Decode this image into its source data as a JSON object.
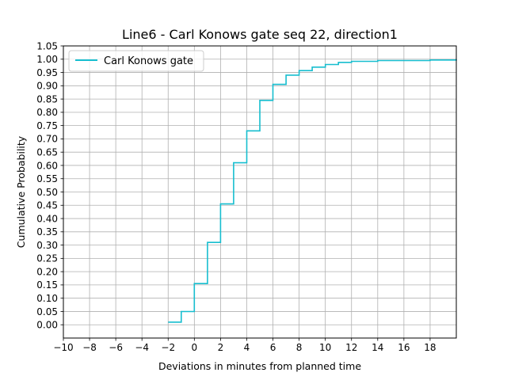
{
  "chart_data": {
    "type": "line",
    "step": "post",
    "title": "Line6 - Carl Konows gate seq 22, direction1",
    "xlabel": "Deviations in minutes from planned time",
    "ylabel": "Cumulative Probability",
    "xlim": [
      -10,
      20
    ],
    "ylim": [
      -0.05,
      1.05
    ],
    "xticks": [
      -10,
      -8,
      -6,
      -4,
      -2,
      0,
      2,
      4,
      6,
      8,
      10,
      12,
      14,
      16,
      18
    ],
    "xtick_labels": [
      "−10",
      "−8",
      "−6",
      "−4",
      "−2",
      "0",
      "2",
      "4",
      "6",
      "8",
      "10",
      "12",
      "14",
      "16",
      "18"
    ],
    "yticks": [
      0.0,
      0.05,
      0.1,
      0.15,
      0.2,
      0.25,
      0.3,
      0.35,
      0.4,
      0.45,
      0.5,
      0.55,
      0.6,
      0.65,
      0.7,
      0.75,
      0.8,
      0.85,
      0.9,
      0.95,
      1.0,
      1.05
    ],
    "ytick_labels": [
      "0.00",
      "0.05",
      "0.10",
      "0.15",
      "0.20",
      "0.25",
      "0.30",
      "0.35",
      "0.40",
      "0.45",
      "0.50",
      "0.55",
      "0.60",
      "0.65",
      "0.70",
      "0.75",
      "0.80",
      "0.85",
      "0.90",
      "0.95",
      "1.00",
      "1.05"
    ],
    "grid": true,
    "legend_position": "top-left",
    "series": [
      {
        "name": "Carl Konows gate",
        "color": "#17becf",
        "x": [
          -2,
          -1,
          0,
          1,
          2,
          3,
          4,
          5,
          6,
          7,
          8,
          9,
          10,
          11,
          12,
          14,
          18,
          20
        ],
        "y": [
          0.01,
          0.05,
          0.155,
          0.31,
          0.455,
          0.61,
          0.73,
          0.845,
          0.905,
          0.94,
          0.957,
          0.97,
          0.98,
          0.988,
          0.992,
          0.995,
          0.997,
          1.0
        ]
      }
    ]
  }
}
